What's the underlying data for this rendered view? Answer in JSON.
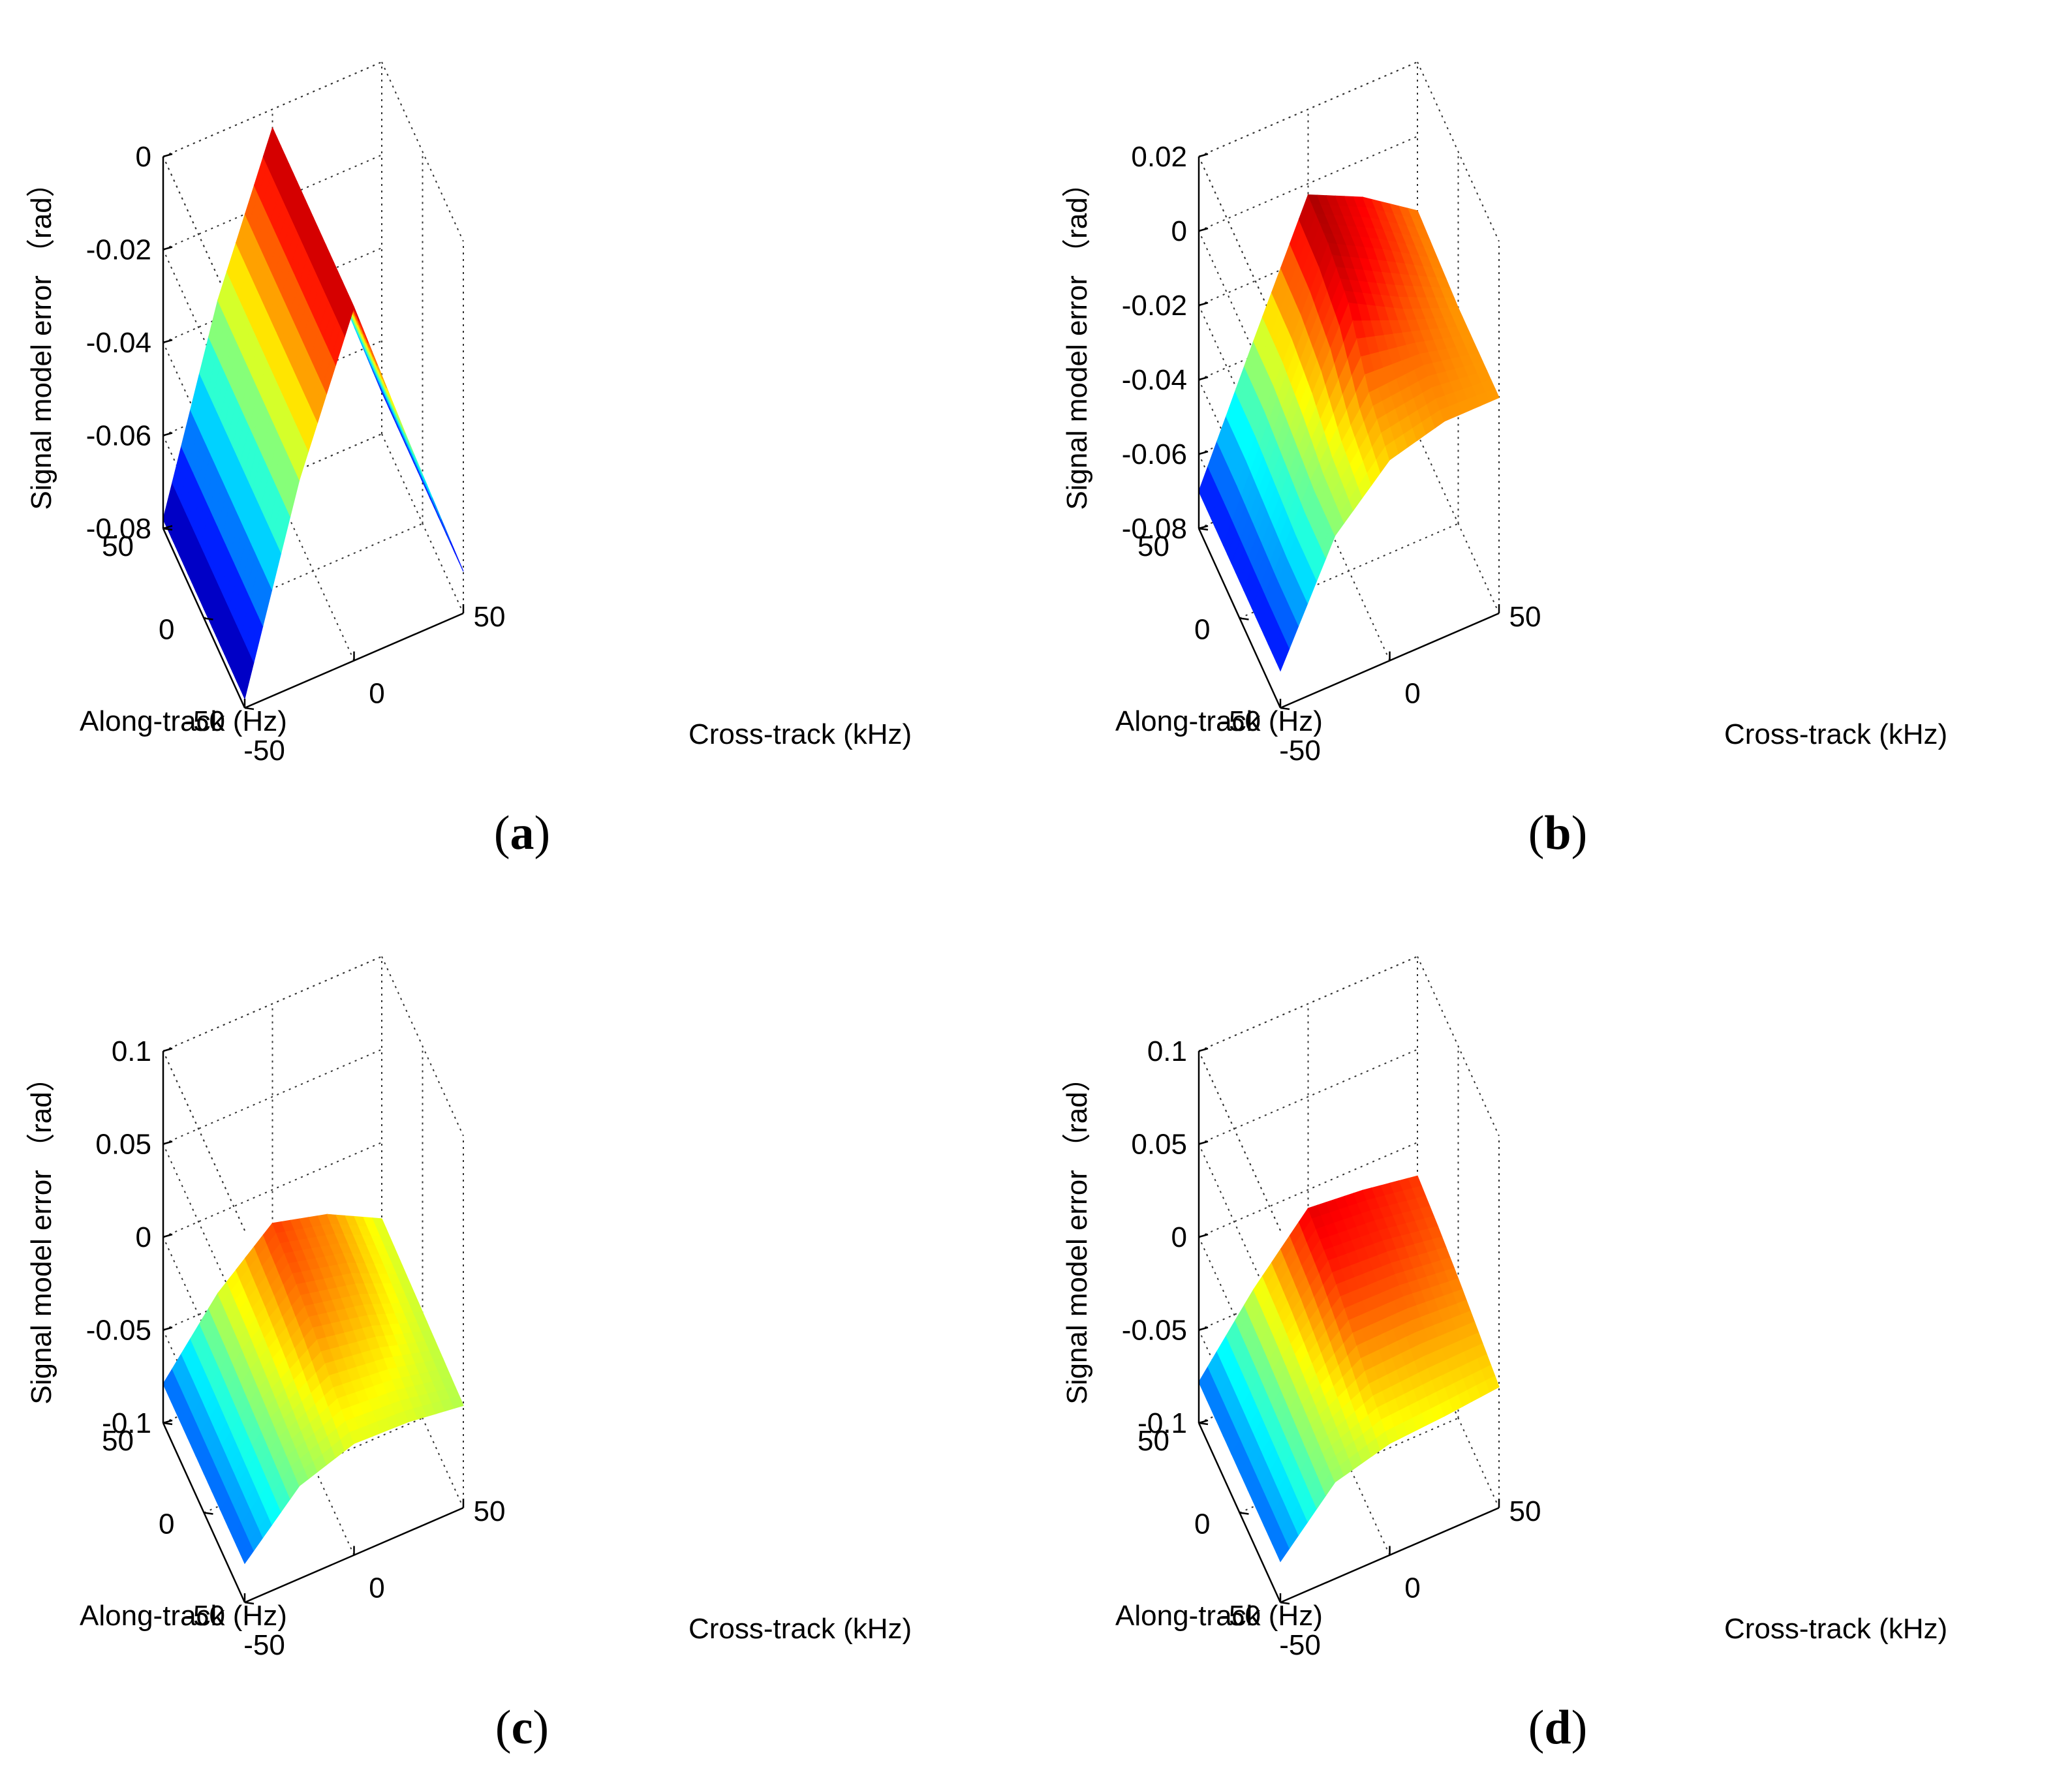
{
  "chart_data": [
    {
      "type": "surface3d",
      "caption": "a",
      "xlabel": "Cross-track (kHz)",
      "ylabel": "Along-track (Hz)",
      "zlabel": "Signal model error （rad）",
      "xlim": [
        -50,
        50
      ],
      "ylim": [
        -50,
        50
      ],
      "zlim": [
        -0.08,
        0
      ],
      "x_ticks": [
        "-50",
        "0",
        "50"
      ],
      "y_ticks": [
        "-50",
        "0",
        "50"
      ],
      "z_ticks": [
        "-0.08",
        "-0.06",
        "-0.04",
        "-0.02",
        "0"
      ],
      "z_tick_values": [
        -0.08,
        -0.06,
        -0.04,
        -0.02,
        0
      ],
      "colormap": "jet",
      "grid": true,
      "surface": {
        "x": [
          -50,
          -25,
          0,
          25,
          50
        ],
        "y": [
          -50,
          -25,
          0,
          25,
          50
        ],
        "z_rows_by_y": [
          [
            -0.078,
            -0.036,
            -0.004,
            -0.038,
            -0.071
          ],
          [
            -0.078,
            -0.036,
            -0.004,
            -0.038,
            -0.071
          ],
          [
            -0.078,
            -0.036,
            -0.004,
            -0.038,
            -0.071
          ],
          [
            -0.078,
            -0.036,
            -0.004,
            -0.038,
            -0.071
          ],
          [
            -0.078,
            -0.036,
            -0.004,
            -0.038,
            -0.071
          ]
        ]
      }
    },
    {
      "type": "surface3d",
      "caption": "b",
      "xlabel": "Cross-track (kHz)",
      "ylabel": "Along-track (Hz)",
      "zlabel": "Signal model error （rad）",
      "xlim": [
        -50,
        50
      ],
      "ylim": [
        -50,
        50
      ],
      "zlim": [
        -0.08,
        0.02
      ],
      "x_ticks": [
        "-50",
        "0",
        "50"
      ],
      "y_ticks": [
        "-50",
        "0",
        "50"
      ],
      "z_ticks": [
        "-0.08",
        "-0.06",
        "-0.04",
        "-0.02",
        "0",
        "0.02"
      ],
      "z_tick_values": [
        -0.08,
        -0.06,
        -0.04,
        -0.02,
        0,
        0.02
      ],
      "colormap": "jet",
      "grid": true,
      "surface": {
        "x": [
          -50,
          -25,
          0,
          25,
          50
        ],
        "y": [
          -50,
          -25,
          0,
          25,
          50
        ],
        "z_rows_by_y": [
          [
            -0.07,
            -0.04,
            -0.026,
            -0.022,
            -0.022
          ],
          [
            -0.07,
            -0.04,
            -0.02,
            -0.019,
            -0.022
          ],
          [
            -0.07,
            -0.038,
            -0.008,
            -0.016,
            -0.022
          ],
          [
            -0.07,
            -0.036,
            -0.004,
            -0.012,
            -0.021
          ],
          [
            -0.07,
            -0.036,
            -0.003,
            -0.01,
            -0.02
          ]
        ]
      }
    },
    {
      "type": "surface3d",
      "caption": "c",
      "xlabel": "Cross-track (kHz)",
      "ylabel": "Along-track (Hz)",
      "zlabel": "Signal model error （rad）",
      "xlim": [
        -50,
        50
      ],
      "ylim": [
        -50,
        50
      ],
      "zlim": [
        -0.1,
        0.1
      ],
      "x_ticks": [
        "-50",
        "0",
        "50"
      ],
      "y_ticks": [
        "-50",
        "0",
        "50"
      ],
      "z_ticks": [
        "-0.1",
        "-0.05",
        "0",
        "0.05",
        "0.1"
      ],
      "z_tick_values": [
        -0.1,
        -0.05,
        0,
        0.05,
        0.1
      ],
      "colormap": "jet",
      "grid": true,
      "surface": {
        "x": [
          -50,
          -25,
          0,
          25,
          50
        ],
        "y": [
          -50,
          -25,
          0,
          25,
          50
        ],
        "z_rows_by_y": [
          [
            -0.079,
            -0.05,
            -0.04,
            -0.041,
            -0.045
          ],
          [
            -0.079,
            -0.048,
            -0.034,
            -0.037,
            -0.044
          ],
          [
            -0.079,
            -0.046,
            -0.026,
            -0.032,
            -0.043
          ],
          [
            -0.079,
            -0.044,
            -0.021,
            -0.028,
            -0.042
          ],
          [
            -0.079,
            -0.043,
            -0.018,
            -0.026,
            -0.041
          ]
        ]
      }
    },
    {
      "type": "surface3d",
      "caption": "d",
      "xlabel": "Cross-track (kHz)",
      "ylabel": "Along-track (Hz)",
      "zlabel": "Signal model error （rad）",
      "xlim": [
        -50,
        50
      ],
      "ylim": [
        -50,
        50
      ],
      "zlim": [
        -0.1,
        0.1
      ],
      "x_ticks": [
        "-50",
        "0",
        "50"
      ],
      "y_ticks": [
        "-50",
        "0",
        "50"
      ],
      "z_ticks": [
        "-0.1",
        "-0.05",
        "0",
        "0.05",
        "0.1"
      ],
      "z_tick_values": [
        -0.1,
        -0.05,
        0,
        0.05,
        0.1
      ],
      "colormap": "jet",
      "grid": true,
      "surface": {
        "x": [
          -50,
          -25,
          0,
          25,
          50
        ],
        "y": [
          -50,
          -25,
          0,
          25,
          50
        ],
        "z_rows_by_y": [
          [
            -0.078,
            -0.048,
            -0.04,
            -0.038,
            -0.035
          ],
          [
            -0.078,
            -0.046,
            -0.032,
            -0.03,
            -0.03
          ],
          [
            -0.078,
            -0.044,
            -0.022,
            -0.022,
            -0.025
          ],
          [
            -0.078,
            -0.042,
            -0.014,
            -0.016,
            -0.021
          ],
          [
            -0.078,
            -0.041,
            -0.01,
            -0.013,
            -0.018
          ]
        ]
      }
    }
  ]
}
